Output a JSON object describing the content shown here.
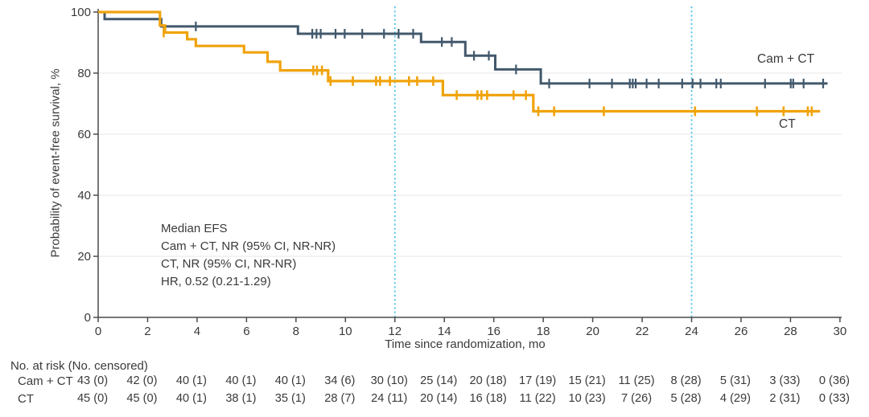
{
  "figure": {
    "background": "#ffffff",
    "text_color": "#3a3a3a"
  },
  "chart_data": {
    "type": "line",
    "variant": "kaplan_meier_step_curve",
    "title": "",
    "xlabel": "Time since randomization, mo",
    "ylabel": "Probability of event-free survival, %",
    "xlim": [
      0,
      30
    ],
    "ylim": [
      0,
      100
    ],
    "xticks": [
      0,
      2,
      4,
      6,
      8,
      10,
      12,
      14,
      16,
      18,
      20,
      22,
      24,
      26,
      28,
      30
    ],
    "yticks": [
      0,
      20,
      40,
      60,
      80,
      100
    ],
    "gridlines_y": [
      20,
      40,
      60,
      80
    ],
    "grid_on": true,
    "grid_color": "#ececec",
    "axis_color": "#4a4a4a",
    "tick_label_color": "#3a3a3a",
    "reference_lines": {
      "x_values": [
        12,
        24
      ],
      "color": "#55c3ea",
      "style": "dotted"
    },
    "series": [
      {
        "name": "Cam + CT",
        "color": "#42586c",
        "steps": [
          [
            0,
            100
          ],
          [
            0.26,
            97.7
          ],
          [
            2.55,
            95.3
          ],
          [
            8.08,
            92.9
          ],
          [
            13.06,
            90.2
          ],
          [
            14.85,
            85.7
          ],
          [
            16.06,
            81.2
          ],
          [
            17.9,
            76.6
          ],
          [
            29.5,
            76.6
          ]
        ],
        "censors": [
          [
            3.95,
            95.3
          ],
          [
            8.66,
            92.9
          ],
          [
            8.83,
            92.9
          ],
          [
            9.0,
            92.9
          ],
          [
            9.6,
            92.9
          ],
          [
            9.97,
            92.9
          ],
          [
            10.68,
            92.9
          ],
          [
            11.56,
            92.9
          ],
          [
            12.15,
            92.9
          ],
          [
            12.74,
            92.9
          ],
          [
            13.9,
            90.2
          ],
          [
            14.3,
            90.2
          ],
          [
            15.2,
            85.7
          ],
          [
            15.8,
            85.7
          ],
          [
            16.9,
            81.2
          ],
          [
            18.24,
            76.6
          ],
          [
            19.87,
            76.6
          ],
          [
            20.78,
            76.6
          ],
          [
            21.5,
            76.6
          ],
          [
            21.62,
            76.6
          ],
          [
            21.74,
            76.6
          ],
          [
            22.18,
            76.6
          ],
          [
            22.67,
            76.6
          ],
          [
            23.62,
            76.6
          ],
          [
            24.04,
            76.6
          ],
          [
            24.36,
            76.6
          ],
          [
            25.0,
            76.6
          ],
          [
            25.18,
            76.6
          ],
          [
            26.97,
            76.6
          ],
          [
            28.01,
            76.6
          ],
          [
            28.11,
            76.6
          ],
          [
            28.53,
            76.6
          ],
          [
            29.32,
            76.6
          ]
        ]
      },
      {
        "name": "CT",
        "color": "#f0a30c",
        "steps": [
          [
            0,
            100
          ],
          [
            2.5,
            95.6
          ],
          [
            2.7,
            93.3
          ],
          [
            3.6,
            91.1
          ],
          [
            3.95,
            88.9
          ],
          [
            5.9,
            86.8
          ],
          [
            6.85,
            83.7
          ],
          [
            7.36,
            80.9
          ],
          [
            9.3,
            77.4
          ],
          [
            13.94,
            72.8
          ],
          [
            17.6,
            67.5
          ],
          [
            29.2,
            67.5
          ]
        ],
        "censors": [
          [
            2.65,
            93.3
          ],
          [
            8.7,
            80.9
          ],
          [
            8.85,
            80.9
          ],
          [
            9.05,
            80.9
          ],
          [
            9.4,
            77.4
          ],
          [
            10.3,
            77.4
          ],
          [
            11.24,
            77.4
          ],
          [
            11.4,
            77.4
          ],
          [
            11.8,
            77.4
          ],
          [
            12.57,
            77.4
          ],
          [
            12.9,
            77.4
          ],
          [
            13.55,
            77.4
          ],
          [
            14.5,
            72.8
          ],
          [
            15.34,
            72.8
          ],
          [
            15.5,
            72.8
          ],
          [
            15.73,
            72.8
          ],
          [
            16.8,
            72.8
          ],
          [
            17.3,
            72.8
          ],
          [
            17.8,
            67.5
          ],
          [
            18.44,
            67.5
          ],
          [
            20.45,
            67.5
          ],
          [
            24.14,
            67.5
          ],
          [
            26.64,
            67.5
          ],
          [
            27.72,
            67.5
          ],
          [
            28.7,
            67.5
          ],
          [
            28.86,
            67.5
          ]
        ]
      }
    ],
    "annotation": {
      "lines": [
        "Median EFS",
        "Cam + CT, NR (95% CI, NR-NR)",
        "CT, NR (95% CI, NR-NR)",
        "HR, 0.52 (0.21-1.29)"
      ]
    },
    "legend_position": "on-curve-right",
    "risk_table": {
      "header": "No. at risk (No. censored)",
      "times": [
        0,
        2,
        4,
        6,
        8,
        10,
        12,
        14,
        16,
        18,
        20,
        22,
        24,
        26,
        28,
        30
      ],
      "rows": [
        {
          "name": "Cam + CT",
          "values": [
            "43 (0)",
            "42 (0)",
            "40 (1)",
            "40 (1)",
            "40 (1)",
            "34 (6)",
            "30 (10)",
            "25 (14)",
            "20 (18)",
            "17 (19)",
            "15 (21)",
            "11 (25)",
            "8 (28)",
            "5 (31)",
            "3 (33)",
            "0 (36)"
          ]
        },
        {
          "name": "CT",
          "values": [
            "45 (0)",
            "45 (0)",
            "40 (1)",
            "38 (1)",
            "35 (1)",
            "28 (7)",
            "24 (11)",
            "20 (14)",
            "16 (18)",
            "11 (22)",
            "10 (23)",
            "7 (26)",
            "5 (28)",
            "4 (29)",
            "2 (31)",
            "0 (33)"
          ]
        }
      ]
    }
  }
}
